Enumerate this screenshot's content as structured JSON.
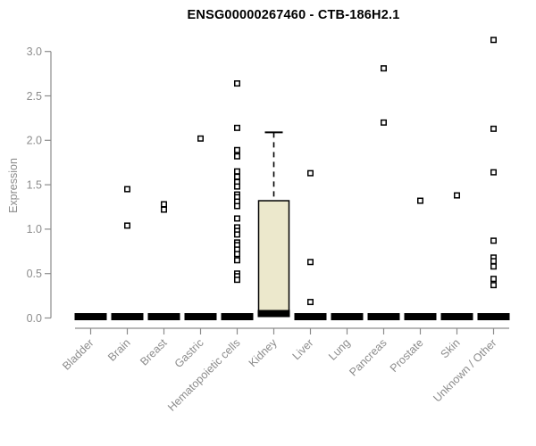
{
  "page": {
    "background": "#ffffff"
  },
  "title": "ENSG00000267460 - CTB-186H2.1",
  "chart_data": {
    "type": "boxplot",
    "title": "ENSG00000267460 - CTB-186H2.1",
    "xlabel": "",
    "ylabel": "Expression",
    "ylim": [
      0,
      3.25
    ],
    "yticks": [
      "0.0",
      "0.5",
      "1.0",
      "1.5",
      "2.0",
      "2.5",
      "3.0"
    ],
    "grid": false,
    "legend": "none",
    "colors": {
      "box_fill": "#ECE8CC",
      "box_stroke": "#000000",
      "collapsed_bar": "#000000",
      "axis": "#8c8c8c",
      "title": "#000000",
      "outlier_fill": "#ffffff",
      "outlier_stroke": "#000000"
    },
    "categories": [
      {
        "label": "Bladder",
        "box": {
          "min": 0,
          "q1": 0,
          "median": 0,
          "q3": 0,
          "max": 0
        },
        "outliers": []
      },
      {
        "label": "Brain",
        "box": {
          "min": 0,
          "q1": 0,
          "median": 0,
          "q3": 0,
          "max": 0
        },
        "outliers": [
          1.45,
          1.04
        ]
      },
      {
        "label": "Breast",
        "box": {
          "min": 0,
          "q1": 0,
          "median": 0,
          "q3": 0,
          "max": 0
        },
        "outliers": [
          1.28,
          1.22
        ]
      },
      {
        "label": "Gastric",
        "box": {
          "min": 0,
          "q1": 0,
          "median": 0,
          "q3": 0,
          "max": 0
        },
        "outliers": [
          2.02
        ]
      },
      {
        "label": "Hematopoietic cells",
        "box": {
          "min": 0,
          "q1": 0,
          "median": 0,
          "q3": 0,
          "max": 0
        },
        "outliers": [
          2.64,
          2.14,
          1.89,
          1.82,
          1.65,
          1.59,
          1.53,
          1.48,
          1.39,
          1.36,
          1.31,
          1.26,
          1.12,
          1.02,
          0.98,
          0.94,
          0.85,
          0.82,
          0.77,
          0.72,
          0.65,
          0.5,
          0.47,
          0.43
        ]
      },
      {
        "label": "Kidney",
        "box": {
          "min": 0,
          "q1": 0,
          "median": 0,
          "q3": 1.32,
          "max": 2.09
        },
        "outliers": []
      },
      {
        "label": "Liver",
        "box": {
          "min": 0,
          "q1": 0,
          "median": 0,
          "q3": 0,
          "max": 0
        },
        "outliers": [
          1.63,
          0.63,
          0.18
        ]
      },
      {
        "label": "Lung",
        "box": {
          "min": 0,
          "q1": 0,
          "median": 0,
          "q3": 0,
          "max": 0
        },
        "outliers": []
      },
      {
        "label": "Pancreas",
        "box": {
          "min": 0,
          "q1": 0,
          "median": 0,
          "q3": 0,
          "max": 0
        },
        "outliers": [
          2.81,
          2.2
        ]
      },
      {
        "label": "Prostate",
        "box": {
          "min": 0,
          "q1": 0,
          "median": 0,
          "q3": 0,
          "max": 0
        },
        "outliers": [
          1.32
        ]
      },
      {
        "label": "Skin",
        "box": {
          "min": 0,
          "q1": 0,
          "median": 0,
          "q3": 0,
          "max": 0
        },
        "outliers": [
          1.38
        ]
      },
      {
        "label": "Unknown / Other",
        "box": {
          "min": 0,
          "q1": 0,
          "median": 0,
          "q3": 0,
          "max": 0
        },
        "outliers": [
          3.13,
          2.13,
          1.64,
          0.87,
          0.68,
          0.64,
          0.58,
          0.44,
          0.37
        ]
      }
    ]
  }
}
